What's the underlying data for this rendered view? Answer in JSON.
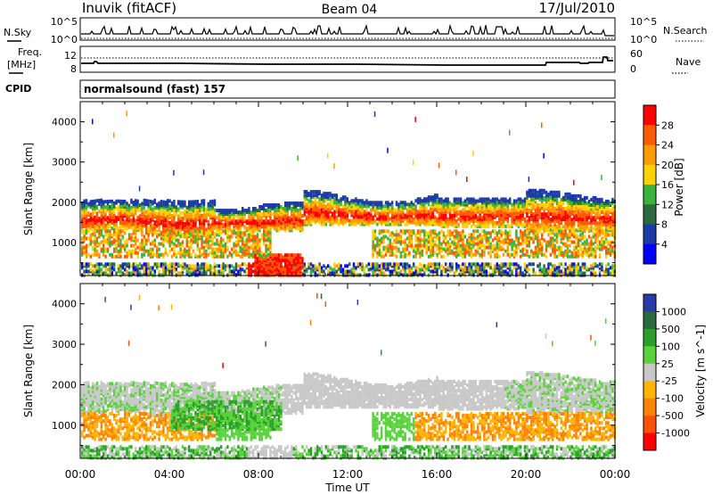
{
  "header": {
    "station": "Inuvik (fitACF)",
    "beam": "Beam 04",
    "date": "17/Jul/2010"
  },
  "top_panels": {
    "nsky_label": "N.Sky",
    "nsearch_label": "N.Search",
    "nsky_ticks": [
      "10^5",
      "10^0"
    ],
    "nsearch_ticks": [
      "10^5",
      "10^0"
    ],
    "freq_label_1": "Freq.",
    "freq_label_2": "[MHz]",
    "freq_ticks": [
      "12",
      "8"
    ],
    "nave_label": "Nave",
    "nave_ticks": [
      "60",
      "0"
    ],
    "cpid_label": "CPID",
    "cpid_value": "normalsound (fast) 157"
  },
  "chart_data": [
    {
      "type": "heatmap",
      "title": "",
      "ylabel": "Slant Range [km]",
      "xlabel": "",
      "ylim": [
        180,
        4500
      ],
      "x_ticks": [
        "00:00",
        "04:00",
        "08:00",
        "12:00",
        "16:00",
        "20:00",
        "00:00"
      ],
      "y_ticks": [
        1000,
        2000,
        3000,
        4000
      ],
      "colorbar": {
        "label": "Power [dB]",
        "ticks": [
          "28",
          "24",
          "20",
          "16",
          "12",
          "8",
          "4"
        ],
        "colors": [
          "#ff0000",
          "#ff5a00",
          "#ff9a00",
          "#ffd200",
          "#3cb43c",
          "#2a6a3c",
          "#1a3aa8",
          "#0000ff"
        ]
      },
      "echo_bands": [
        {
          "name": "main F-region",
          "range_km": [
            1200,
            2300
          ],
          "peak_power_db": 30
        },
        {
          "name": "lower band",
          "range_km": [
            600,
            1000
          ],
          "peak_power_db": 20
        },
        {
          "name": "ground/near range",
          "range_km": [
            180,
            500
          ],
          "peak_power_db": 30
        }
      ]
    },
    {
      "type": "heatmap",
      "title": "",
      "ylabel": "Slant Range [km]",
      "xlabel": "Time UT",
      "ylim": [
        180,
        4500
      ],
      "x_ticks": [
        "00:00",
        "04:00",
        "08:00",
        "12:00",
        "16:00",
        "20:00",
        "00:00"
      ],
      "y_ticks": [
        1000,
        2000,
        3000,
        4000
      ],
      "colorbar": {
        "label": "Velocity [m s^-1]",
        "ticks": [
          "1000",
          "500",
          "100",
          "25",
          "-25",
          "-100",
          "-500",
          "-1000"
        ],
        "colors": [
          "#2a3aa8",
          "#2a6a3c",
          "#2aa02a",
          "#5ad23c",
          "#c8c8c8",
          "#ffb400",
          "#ff8200",
          "#ff5000",
          "#ff0000"
        ]
      },
      "echo_bands": [
        {
          "name": "ground scatter",
          "range_km": [
            1400,
            2300
          ],
          "velocity_ms": 0
        },
        {
          "name": "negative flow band",
          "range_km": [
            700,
            1400
          ],
          "velocity_ms": -100
        },
        {
          "name": "positive flow band",
          "range_km": [
            800,
            1500
          ],
          "velocity_ms": 100
        }
      ]
    }
  ],
  "colors": {
    "power_scale": [
      "#0000ff",
      "#1a3aa8",
      "#2a6a3c",
      "#3cb43c",
      "#ffd200",
      "#ff9a00",
      "#ff5a00",
      "#ff0000"
    ],
    "velocity_scale": [
      "#2a3aa8",
      "#2a6a3c",
      "#2aa02a",
      "#5ad23c",
      "#c8c8c8",
      "#ffb400",
      "#ff8200",
      "#ff5000",
      "#ff0000"
    ]
  }
}
